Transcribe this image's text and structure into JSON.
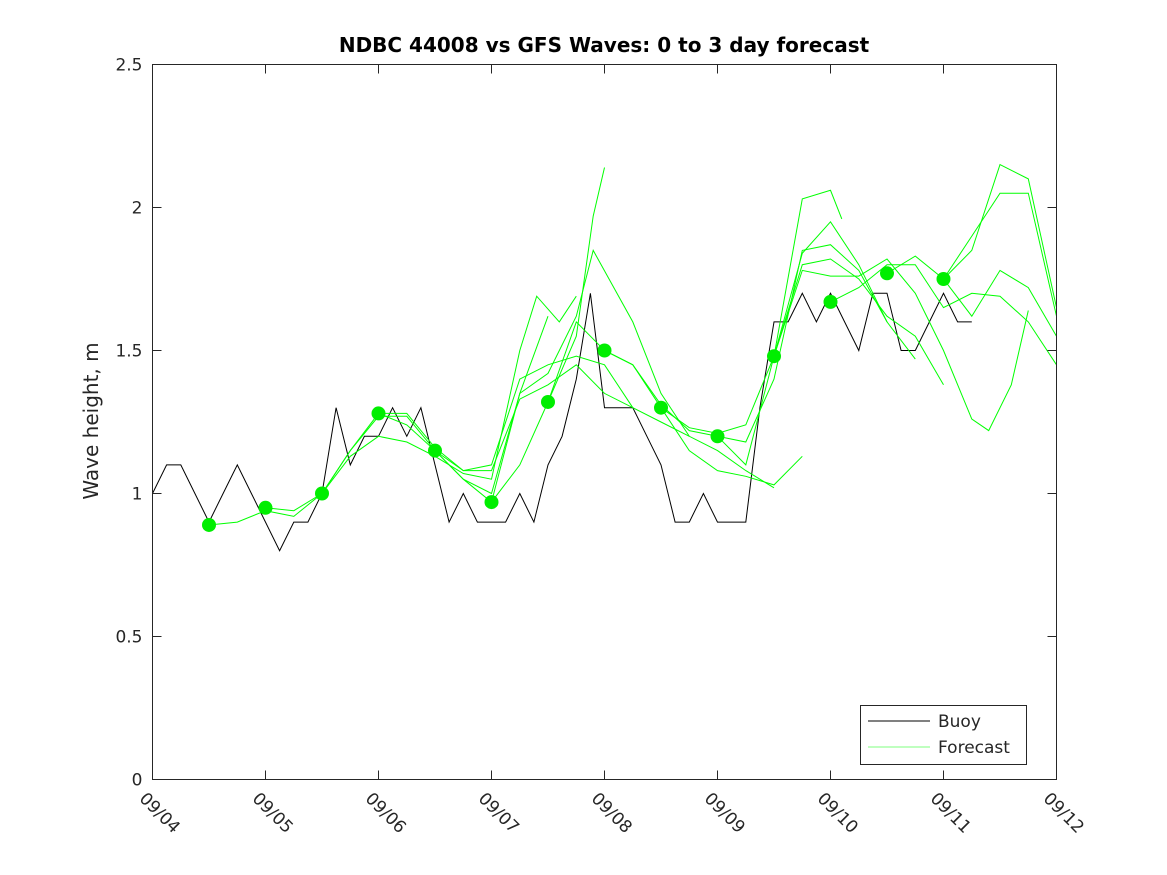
{
  "chart_data": {
    "type": "line",
    "title": "NDBC 44008 vs GFS Waves: 0 to 3 day forecast",
    "xlabel": "",
    "ylabel": "Wave height, m",
    "xlim": [
      0,
      8
    ],
    "ylim": [
      0,
      2.5
    ],
    "x_unit": "days since 09/04",
    "xticks": [
      0,
      1,
      2,
      3,
      4,
      5,
      6,
      7,
      8
    ],
    "xtick_labels": [
      "09/04",
      "09/05",
      "09/06",
      "09/07",
      "09/08",
      "09/09",
      "09/10",
      "09/11",
      "09/12"
    ],
    "yticks": [
      0,
      0.5,
      1,
      1.5,
      2,
      2.5
    ],
    "ytick_labels": [
      "0",
      "0.5",
      "1",
      "1.5",
      "2",
      "2.5"
    ],
    "grid": false,
    "legend": {
      "placement": "bottom-right",
      "entries": [
        "Buoy",
        "Forecast"
      ]
    },
    "colors": {
      "buoy": "#000000",
      "forecast": "#00ff00",
      "analysis_dots": "#00ee00"
    },
    "buoy": {
      "name": "Buoy",
      "x_start": 0,
      "x_step": 0.125,
      "values": [
        1.0,
        1.1,
        1.1,
        1.0,
        0.9,
        1.0,
        1.1,
        1.0,
        0.9,
        0.8,
        0.9,
        0.9,
        1.0,
        1.3,
        1.1,
        1.2,
        1.2,
        1.3,
        1.2,
        1.3,
        1.1,
        0.9,
        1.0,
        0.9,
        0.9,
        0.9,
        1.0,
        0.9,
        1.1,
        1.2,
        1.4,
        1.7,
        1.3,
        1.3,
        1.3,
        1.2,
        1.1,
        0.9,
        0.9,
        1.0,
        0.9,
        0.9,
        0.9,
        1.3,
        1.6,
        1.6,
        1.7,
        1.6,
        1.7,
        1.6,
        1.5,
        1.7,
        1.7,
        1.5,
        1.5,
        1.6,
        1.7,
        1.6,
        1.6
      ]
    },
    "forecast_series": [
      {
        "name": "Forecast",
        "points": [
          [
            0.5,
            0.89
          ],
          [
            0.75,
            0.9
          ],
          [
            1,
            0.94
          ],
          [
            1.25,
            0.92
          ],
          [
            1.5,
            1.0
          ],
          [
            1.75,
            1.15
          ],
          [
            2,
            1.27
          ],
          [
            2.25,
            1.27
          ],
          [
            2.5,
            1.15
          ],
          [
            2.75,
            1.05
          ],
          [
            3,
            1.0
          ],
          [
            3.25,
            1.35
          ],
          [
            3.5,
            1.62
          ]
        ]
      },
      {
        "name": "Forecast",
        "points": [
          [
            1,
            0.95
          ],
          [
            1.25,
            0.94
          ],
          [
            1.5,
            1.0
          ],
          [
            1.75,
            1.13
          ],
          [
            2,
            1.2
          ],
          [
            2.25,
            1.18
          ],
          [
            2.5,
            1.13
          ],
          [
            2.75,
            1.07
          ],
          [
            3,
            1.05
          ],
          [
            3.25,
            1.5
          ],
          [
            3.4,
            1.69
          ],
          [
            3.6,
            1.6
          ],
          [
            3.75,
            1.69
          ]
        ]
      },
      {
        "name": "Forecast",
        "points": [
          [
            1.5,
            1.0
          ],
          [
            1.75,
            1.15
          ],
          [
            2,
            1.28
          ],
          [
            2.25,
            1.24
          ],
          [
            2.5,
            1.15
          ],
          [
            2.75,
            1.08
          ],
          [
            3,
            1.08
          ],
          [
            3.25,
            1.33
          ],
          [
            3.5,
            1.38
          ],
          [
            3.75,
            1.45
          ],
          [
            4,
            1.35
          ],
          [
            4.25,
            1.3
          ]
        ]
      },
      {
        "name": "Forecast",
        "points": [
          [
            2,
            1.28
          ],
          [
            2.25,
            1.28
          ],
          [
            2.5,
            1.16
          ],
          [
            2.75,
            1.08
          ],
          [
            3,
            1.1
          ],
          [
            3.25,
            1.4
          ],
          [
            3.5,
            1.45
          ],
          [
            3.75,
            1.48
          ],
          [
            4,
            1.45
          ],
          [
            4.25,
            1.3
          ],
          [
            4.5,
            1.25
          ],
          [
            4.75,
            1.2
          ]
        ]
      },
      {
        "name": "Forecast",
        "points": [
          [
            2.5,
            1.15
          ],
          [
            2.75,
            1.05
          ],
          [
            3,
            0.97
          ],
          [
            3.25,
            1.1
          ],
          [
            3.5,
            1.32
          ],
          [
            3.75,
            1.55
          ],
          [
            3.9,
            1.97
          ],
          [
            4,
            2.14
          ]
        ]
      },
      {
        "name": "Forecast",
        "points": [
          [
            3,
            0.97
          ],
          [
            3.25,
            1.35
          ],
          [
            3.5,
            1.42
          ],
          [
            3.75,
            1.62
          ],
          [
            3.9,
            1.85
          ],
          [
            4.25,
            1.6
          ],
          [
            4.5,
            1.35
          ],
          [
            4.75,
            1.2
          ],
          [
            5,
            1.15
          ],
          [
            5.25,
            1.08
          ],
          [
            5.5,
            1.02
          ]
        ]
      },
      {
        "name": "Forecast",
        "points": [
          [
            3.5,
            1.32
          ],
          [
            3.75,
            1.6
          ],
          [
            4,
            1.5
          ],
          [
            4.25,
            1.45
          ],
          [
            4.5,
            1.3
          ],
          [
            4.75,
            1.15
          ],
          [
            5,
            1.08
          ],
          [
            5.25,
            1.06
          ],
          [
            5.5,
            1.03
          ],
          [
            5.75,
            1.13
          ]
        ]
      },
      {
        "name": "Forecast",
        "points": [
          [
            4,
            1.5
          ],
          [
            4.25,
            1.45
          ],
          [
            4.5,
            1.31
          ],
          [
            4.75,
            1.22
          ],
          [
            5,
            1.2
          ],
          [
            5.25,
            1.18
          ],
          [
            5.5,
            1.4
          ],
          [
            5.75,
            1.85
          ],
          [
            6,
            1.87
          ],
          [
            6.25,
            1.78
          ],
          [
            6.5,
            1.6
          ]
        ]
      },
      {
        "name": "Forecast",
        "points": [
          [
            4.5,
            1.3
          ],
          [
            4.75,
            1.23
          ],
          [
            5,
            1.21
          ],
          [
            5.25,
            1.24
          ],
          [
            5.5,
            1.48
          ],
          [
            5.75,
            1.84
          ],
          [
            6,
            1.95
          ],
          [
            6.25,
            1.8
          ],
          [
            6.5,
            1.6
          ],
          [
            6.75,
            1.47
          ]
        ]
      },
      {
        "name": "Forecast",
        "points": [
          [
            5,
            1.2
          ],
          [
            5.25,
            1.1
          ],
          [
            5.5,
            1.48
          ],
          [
            5.75,
            1.8
          ],
          [
            6,
            1.82
          ],
          [
            6.25,
            1.75
          ],
          [
            6.5,
            1.62
          ],
          [
            6.75,
            1.55
          ],
          [
            7,
            1.38
          ]
        ]
      },
      {
        "name": "Forecast",
        "points": [
          [
            5.5,
            1.48
          ],
          [
            5.75,
            2.03
          ],
          [
            6,
            2.06
          ],
          [
            6.1,
            1.96
          ]
        ]
      },
      {
        "name": "Forecast",
        "points": [
          [
            5.5,
            1.48
          ],
          [
            5.75,
            1.78
          ],
          [
            6,
            1.76
          ],
          [
            6.25,
            1.76
          ],
          [
            6.5,
            1.82
          ],
          [
            6.75,
            1.7
          ],
          [
            7,
            1.5
          ],
          [
            7.25,
            1.26
          ],
          [
            7.4,
            1.22
          ],
          [
            7.6,
            1.38
          ],
          [
            7.75,
            1.64
          ]
        ]
      },
      {
        "name": "Forecast",
        "points": [
          [
            6,
            1.67
          ],
          [
            6.25,
            1.72
          ],
          [
            6.5,
            1.8
          ],
          [
            6.75,
            1.8
          ],
          [
            7,
            1.65
          ],
          [
            7.25,
            1.7
          ],
          [
            7.5,
            1.69
          ],
          [
            7.75,
            1.6
          ],
          [
            8,
            1.45
          ]
        ]
      },
      {
        "name": "Forecast",
        "points": [
          [
            6.5,
            1.77
          ],
          [
            6.75,
            1.83
          ],
          [
            7,
            1.75
          ],
          [
            7.25,
            1.62
          ],
          [
            7.5,
            1.78
          ],
          [
            7.75,
            1.72
          ],
          [
            8,
            1.55
          ]
        ]
      },
      {
        "name": "Forecast",
        "points": [
          [
            7,
            1.75
          ],
          [
            7.25,
            1.9
          ],
          [
            7.5,
            2.05
          ],
          [
            7.75,
            2.05
          ],
          [
            8,
            1.62
          ]
        ]
      },
      {
        "name": "Forecast",
        "points": [
          [
            7,
            1.75
          ],
          [
            7.25,
            1.85
          ],
          [
            7.5,
            2.15
          ],
          [
            7.75,
            2.1
          ],
          [
            8,
            1.65
          ]
        ]
      }
    ],
    "analysis_points": {
      "x": [
        0.5,
        1,
        1.5,
        2,
        2.5,
        3,
        3.5,
        4,
        4.5,
        5,
        5.5,
        6,
        6.5,
        7
      ],
      "y": [
        0.89,
        0.95,
        1.0,
        1.28,
        1.15,
        0.97,
        1.32,
        1.5,
        1.3,
        1.2,
        1.48,
        1.67,
        1.77,
        1.75
      ]
    }
  }
}
